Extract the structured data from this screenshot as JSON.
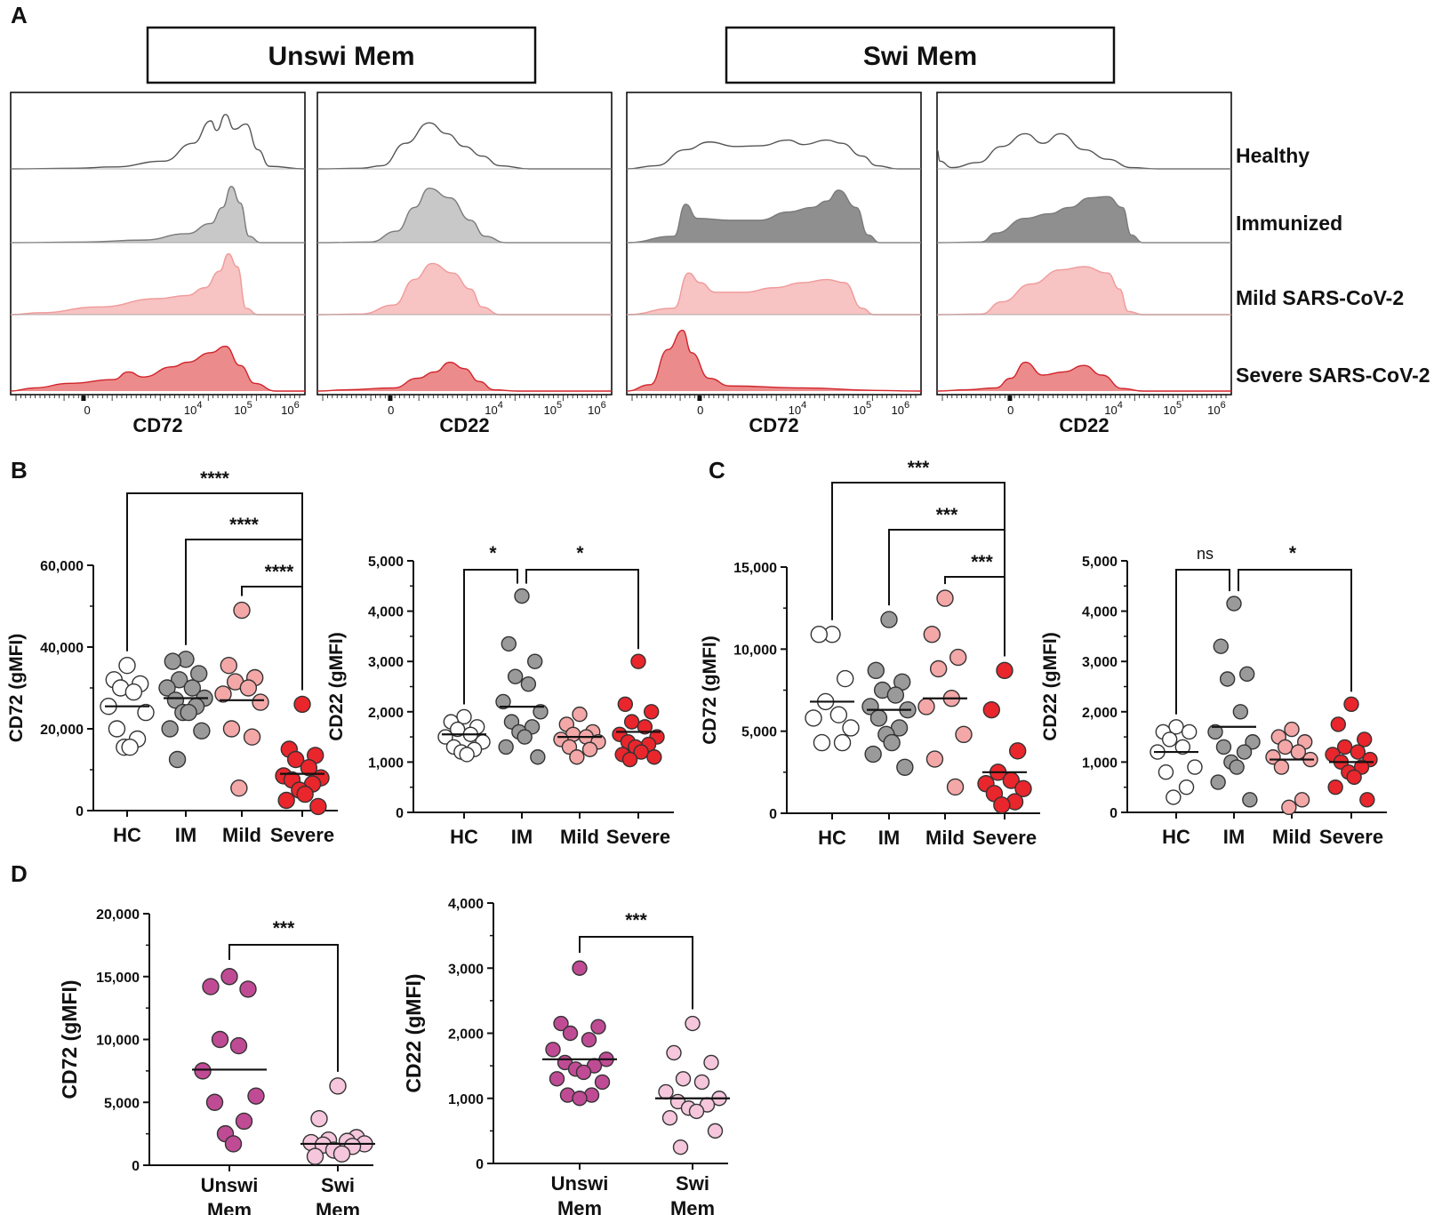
{
  "panel_letters": {
    "a": "A",
    "b": "B",
    "c": "C",
    "d": "D"
  },
  "colors": {
    "hc": "#ffffff",
    "im": "#9a9a9a",
    "mild": "#f4a7a7",
    "severe": "#e8262c",
    "unswi": "#c04b95",
    "swi": "#f5c6dc",
    "hist_healthy": "#555555",
    "hist_immunized_fill": "#c8c8c8",
    "hist_immunized_fill_dark": "#8f8f8f",
    "hist_mild_fill": "#f7c3c3",
    "hist_severe_fill": "#ec8b8b",
    "hist_severe_line": "#d0242b"
  },
  "chart_data": [
    {
      "id": "A",
      "type": "histogram",
      "group_headers": [
        "Unswi Mem",
        "Swi Mem"
      ],
      "row_labels": [
        "Healthy",
        "Immunized",
        "Mild SARS-CoV-2",
        "Severe SARS-CoV-2"
      ],
      "x_scale": "biexponential",
      "x_ticks": [
        "0",
        "10^4",
        "10^5",
        "10^6"
      ],
      "plots": [
        {
          "marker": "CD72",
          "population": "Unswi Mem",
          "xlabel": "CD72"
        },
        {
          "marker": "CD22",
          "population": "Unswi Mem",
          "xlabel": "CD22"
        },
        {
          "marker": "CD72",
          "population": "Swi Mem",
          "xlabel": "CD72"
        },
        {
          "marker": "CD22",
          "population": "Swi Mem",
          "xlabel": "CD22"
        }
      ]
    },
    {
      "id": "B-CD72",
      "panel": "B",
      "type": "scatter",
      "ylabel": "CD72 (gMFI)",
      "ylim": [
        0,
        60000
      ],
      "yticks": [
        0,
        20000,
        40000,
        60000
      ],
      "ytick_labels": [
        "0",
        "20,000",
        "40,000",
        "60,000"
      ],
      "categories": [
        "HC",
        "IM",
        "Mild",
        "Severe"
      ],
      "series": [
        {
          "name": "HC",
          "values": [
            35500,
            32000,
            31000,
            30000,
            29000,
            25500,
            24000,
            20000,
            17500,
            15500,
            15500
          ],
          "median": 25500
        },
        {
          "name": "IM",
          "values": [
            37000,
            36500,
            33500,
            32000,
            30000,
            30000,
            27500,
            27000,
            25500,
            24000,
            24000,
            20000,
            19500,
            12500
          ],
          "median": 27500
        },
        {
          "name": "Mild",
          "values": [
            49000,
            35500,
            32500,
            31500,
            30000,
            28500,
            26500,
            20000,
            18000,
            5500
          ],
          "median": 27000
        },
        {
          "name": "Severe",
          "values": [
            26000,
            15000,
            13500,
            12500,
            10500,
            8500,
            8000,
            7500,
            6500,
            5000,
            4000,
            2500,
            1000
          ],
          "median": 9000
        }
      ],
      "significance": [
        {
          "pair": [
            "HC",
            "Severe"
          ],
          "label": "****"
        },
        {
          "pair": [
            "IM",
            "Severe"
          ],
          "label": "****"
        },
        {
          "pair": [
            "Mild",
            "Severe"
          ],
          "label": "****"
        }
      ]
    },
    {
      "id": "B-CD22",
      "panel": "B",
      "type": "scatter",
      "ylabel": "CD22 (gMFI)",
      "ylim": [
        0,
        5000
      ],
      "yticks": [
        0,
        1000,
        2000,
        3000,
        4000,
        5000
      ],
      "ytick_labels": [
        "0",
        "1,000",
        "2,000",
        "3,000",
        "4,000",
        "5,000"
      ],
      "categories": [
        "HC",
        "IM",
        "Mild",
        "Severe"
      ],
      "series": [
        {
          "name": "HC",
          "values": [
            1900,
            1800,
            1700,
            1650,
            1550,
            1500,
            1400,
            1300,
            1250,
            1200,
            1150
          ],
          "median": 1550
        },
        {
          "name": "IM",
          "values": [
            4300,
            3350,
            3000,
            2700,
            2550,
            2200,
            2000,
            1800,
            1700,
            1600,
            1500,
            1300,
            1100
          ],
          "median": 2100
        },
        {
          "name": "Mild",
          "values": [
            1950,
            1750,
            1600,
            1550,
            1500,
            1450,
            1400,
            1300,
            1250,
            1100
          ],
          "median": 1500
        },
        {
          "name": "Severe",
          "values": [
            3000,
            2150,
            2000,
            1800,
            1700,
            1550,
            1500,
            1400,
            1350,
            1300,
            1200,
            1150,
            1100,
            1050
          ],
          "median": 1600
        }
      ],
      "significance": [
        {
          "pair": [
            "HC",
            "IM"
          ],
          "label": "*"
        },
        {
          "pair": [
            "IM",
            "Severe"
          ],
          "label": "*"
        }
      ]
    },
    {
      "id": "C-CD72",
      "panel": "C",
      "type": "scatter",
      "ylabel": "CD72 (gMFI)",
      "ylim": [
        0,
        15000
      ],
      "yticks": [
        0,
        5000,
        10000,
        15000
      ],
      "ytick_labels": [
        "0",
        "5,000",
        "10,000",
        "15,000"
      ],
      "categories": [
        "HC",
        "IM",
        "Mild",
        "Severe"
      ],
      "series": [
        {
          "name": "HC",
          "values": [
            10900,
            10900,
            8200,
            6800,
            6000,
            5800,
            5200,
            4300,
            4300
          ],
          "median": 6800
        },
        {
          "name": "IM",
          "values": [
            11800,
            8700,
            8000,
            7500,
            7200,
            6500,
            6300,
            5800,
            5200,
            4800,
            4300,
            3600,
            2800
          ],
          "median": 6300
        },
        {
          "name": "Mild",
          "values": [
            13100,
            10900,
            9500,
            8800,
            7000,
            6500,
            4800,
            3300,
            1600
          ],
          "median": 7000
        },
        {
          "name": "Severe",
          "values": [
            8700,
            6300,
            3800,
            2500,
            2000,
            1800,
            1500,
            1200,
            700,
            500
          ],
          "median": 2500
        }
      ],
      "significance": [
        {
          "pair": [
            "HC",
            "Severe"
          ],
          "label": "***"
        },
        {
          "pair": [
            "IM",
            "Severe"
          ],
          "label": "***"
        },
        {
          "pair": [
            "Mild",
            "Severe"
          ],
          "label": "***"
        }
      ]
    },
    {
      "id": "C-CD22",
      "panel": "C",
      "type": "scatter",
      "ylabel": "CD22 (gMFI)",
      "ylim": [
        0,
        5000
      ],
      "yticks": [
        0,
        1000,
        2000,
        3000,
        4000,
        5000
      ],
      "ytick_labels": [
        "0",
        "1,000",
        "2,000",
        "3,000",
        "4,000",
        "5,000"
      ],
      "categories": [
        "HC",
        "IM",
        "Mild",
        "Severe"
      ],
      "series": [
        {
          "name": "HC",
          "values": [
            1700,
            1600,
            1600,
            1450,
            1300,
            1200,
            900,
            800,
            500,
            300
          ],
          "median": 1200
        },
        {
          "name": "IM",
          "values": [
            4150,
            3300,
            2750,
            2650,
            2000,
            1600,
            1400,
            1300,
            1200,
            1000,
            900,
            600,
            250
          ],
          "median": 1700
        },
        {
          "name": "Mild",
          "values": [
            1650,
            1500,
            1400,
            1300,
            1200,
            1100,
            1050,
            900,
            250,
            100
          ],
          "median": 1050
        },
        {
          "name": "Severe",
          "values": [
            2150,
            1750,
            1450,
            1300,
            1200,
            1150,
            1050,
            1000,
            900,
            800,
            700,
            500,
            250
          ],
          "median": 1000
        }
      ],
      "significance": [
        {
          "pair": [
            "HC",
            "IM"
          ],
          "label": "ns"
        },
        {
          "pair": [
            "IM",
            "Severe"
          ],
          "label": "*"
        }
      ]
    },
    {
      "id": "D-CD72",
      "panel": "D",
      "type": "scatter",
      "ylabel": "CD72 (gMFI)",
      "ylim": [
        0,
        20000
      ],
      "yticks": [
        0,
        5000,
        10000,
        15000,
        20000
      ],
      "ytick_labels": [
        "0",
        "5,000",
        "10,000",
        "15,000",
        "20,000"
      ],
      "categories": [
        "Unswi Mem",
        "Swi Mem"
      ],
      "category_lines": [
        [
          "Unswi",
          "Mem"
        ],
        [
          "Swi",
          "Mem"
        ]
      ],
      "series": [
        {
          "name": "Unswi Mem",
          "values": [
            15000,
            14200,
            14000,
            10000,
            9500,
            7500,
            5500,
            5000,
            3500,
            2500,
            1700
          ],
          "median": 7600
        },
        {
          "name": "Swi Mem",
          "values": [
            6300,
            3700,
            2200,
            2000,
            1900,
            1800,
            1700,
            1600,
            1500,
            1200,
            900,
            700
          ],
          "median": 1700
        }
      ],
      "significance": [
        {
          "pair": [
            "Unswi Mem",
            "Swi Mem"
          ],
          "label": "***"
        }
      ]
    },
    {
      "id": "D-CD22",
      "panel": "D",
      "type": "scatter",
      "ylabel": "CD22 (gMFI)",
      "ylim": [
        0,
        4000
      ],
      "yticks": [
        0,
        1000,
        2000,
        3000,
        4000
      ],
      "ytick_labels": [
        "0",
        "1,000",
        "2,000",
        "3,000",
        "4,000"
      ],
      "categories": [
        "Unswi Mem",
        "Swi Mem"
      ],
      "category_lines": [
        [
          "Unswi",
          "Mem"
        ],
        [
          "Swi",
          "Mem"
        ]
      ],
      "series": [
        {
          "name": "Unswi Mem",
          "values": [
            3000,
            2150,
            2100,
            2000,
            1900,
            1750,
            1600,
            1550,
            1500,
            1450,
            1400,
            1300,
            1250,
            1050,
            1050,
            1000
          ],
          "median": 1600
        },
        {
          "name": "Swi Mem",
          "values": [
            2150,
            1700,
            1550,
            1300,
            1250,
            1100,
            1000,
            950,
            900,
            850,
            800,
            700,
            500,
            250
          ],
          "median": 1000
        }
      ],
      "significance": [
        {
          "pair": [
            "Unswi Mem",
            "Swi Mem"
          ],
          "label": "***"
        }
      ]
    }
  ]
}
